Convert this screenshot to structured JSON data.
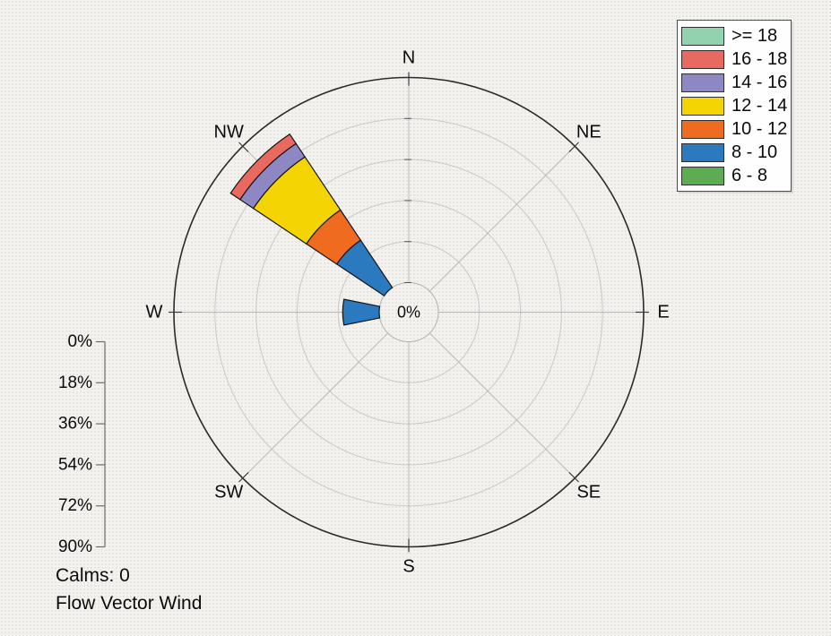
{
  "rose": {
    "center_label": "0%",
    "direction_labels": [
      "N",
      "NE",
      "E",
      "SE",
      "S",
      "SW",
      "W",
      "NW"
    ]
  },
  "scale": {
    "tick_labels": [
      "0%",
      "18%",
      "36%",
      "54%",
      "72%",
      "90%"
    ],
    "tick_percents": [
      0,
      18,
      36,
      54,
      72,
      90
    ]
  },
  "legend": {
    "items": [
      {
        "label": ">= 18",
        "color": "#93d2ae"
      },
      {
        "label": "16 - 18",
        "color": "#e8695f"
      },
      {
        "label": "14 - 16",
        "color": "#8d87c4"
      },
      {
        "label": "12 - 14",
        "color": "#f4d402"
      },
      {
        "label": "10 - 12",
        "color": "#ef6b20"
      },
      {
        "label": "8 - 10",
        "color": "#2b7ac0"
      },
      {
        "label": "6 - 8",
        "color": "#5dab52"
      }
    ]
  },
  "footer": {
    "calms_label": "Calms: 0",
    "flow_label": "Flow Vector Wind"
  },
  "chart_data": {
    "type": "windrose",
    "title": "Flow Vector Wind",
    "calms_percent": 0,
    "directions": [
      "N",
      "NE",
      "E",
      "SE",
      "S",
      "SW",
      "W",
      "NW"
    ],
    "direction_bearings_deg": [
      0,
      45,
      90,
      135,
      180,
      225,
      270,
      315
    ],
    "sector_width_deg": 22.5,
    "ring_percents": [
      0,
      18,
      36,
      54,
      72,
      90
    ],
    "max_percent": 90,
    "center_percent_label": "0%",
    "speed_bins": [
      {
        "label": "6 - 8",
        "color": "#5dab52"
      },
      {
        "label": "8 - 10",
        "color": "#2b7ac0"
      },
      {
        "label": "10 - 12",
        "color": "#ef6b20"
      },
      {
        "label": "12 - 14",
        "color": "#f4d402"
      },
      {
        "label": "14 - 16",
        "color": "#8d87c4"
      },
      {
        "label": "16 - 18",
        "color": "#e8695f"
      },
      {
        "label": ">= 18",
        "color": "#93d2ae"
      }
    ],
    "petals": [
      {
        "direction": "NW",
        "bearing_deg": 315,
        "segments": [
          {
            "bin": "8 - 10",
            "percent": 25
          },
          {
            "bin": "10 - 12",
            "percent": 16
          },
          {
            "bin": "12 - 14",
            "percent": 28
          },
          {
            "bin": "14 - 16",
            "percent": 7
          },
          {
            "bin": "16 - 18",
            "percent": 5
          }
        ]
      },
      {
        "direction": "W",
        "bearing_deg": 270,
        "segments": [
          {
            "bin": "8 - 10",
            "percent": 16
          }
        ]
      }
    ]
  }
}
